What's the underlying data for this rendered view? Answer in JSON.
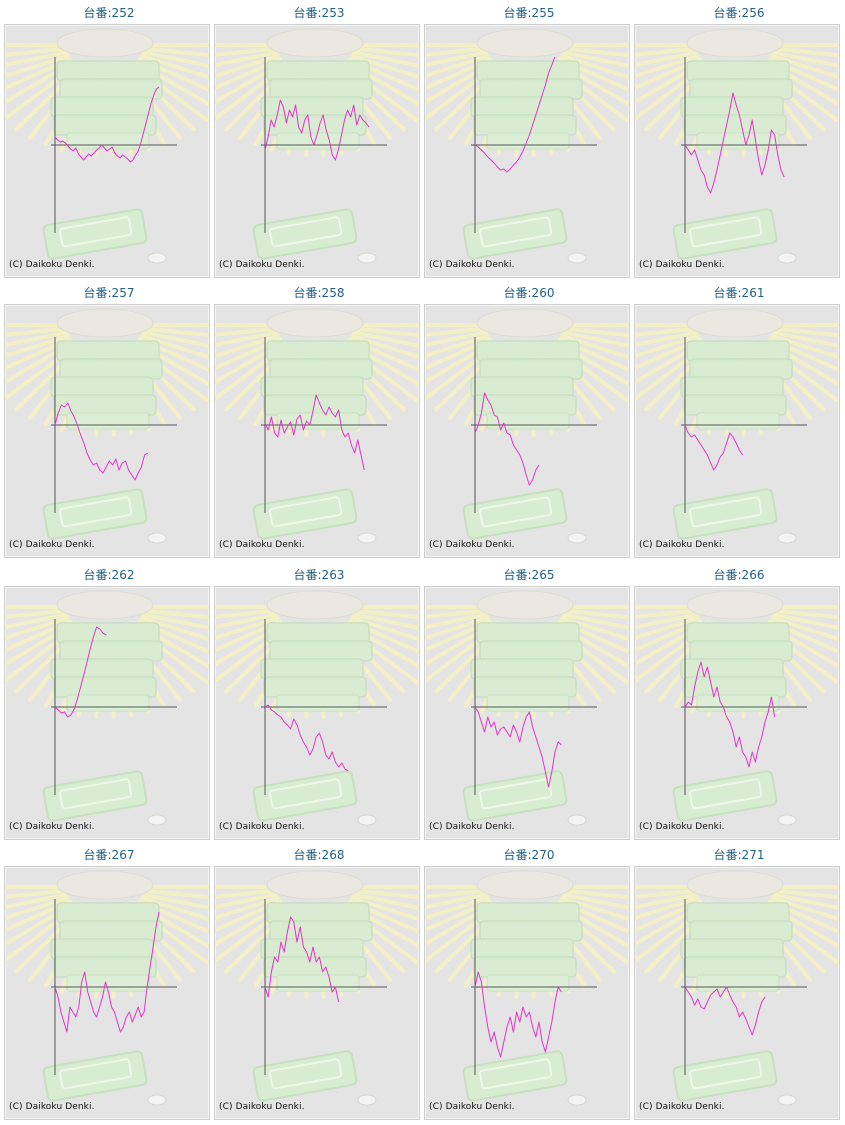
{
  "chart_data": [
    {
      "type": "line",
      "title": "台番:252",
      "y": [
        8,
        5,
        3,
        4,
        2,
        -1,
        -4,
        -6,
        -3,
        -9,
        -12,
        -15,
        -12,
        -9,
        -11,
        -8,
        -5,
        -3,
        0,
        -3,
        -6,
        -4,
        -2,
        -8,
        -11,
        -13,
        -10,
        -12,
        -14,
        -17,
        -15,
        -10,
        -6,
        2,
        12,
        22,
        32,
        42,
        50,
        56,
        58
      ]
    },
    {
      "type": "line",
      "title": "台番:253",
      "y": [
        -5,
        8,
        25,
        18,
        30,
        45,
        38,
        22,
        35,
        28,
        40,
        18,
        12,
        25,
        30,
        8,
        0,
        10,
        22,
        30,
        15,
        5,
        -10,
        -15,
        -5,
        10,
        25,
        35,
        28,
        40,
        20,
        30,
        25,
        22,
        18
      ]
    },
    {
      "type": "line",
      "title": "台番:255",
      "y": [
        0,
        -2,
        -5,
        -8,
        -12,
        -15,
        -18,
        -22,
        -25,
        -24,
        -27,
        -24,
        -20,
        -17,
        -12,
        -6,
        2,
        10,
        20,
        30,
        40,
        50,
        60,
        72,
        80,
        88
      ]
    },
    {
      "type": "line",
      "title": "台番:256",
      "y": [
        0,
        -5,
        -10,
        -5,
        -15,
        -25,
        -30,
        -42,
        -48,
        -38,
        -25,
        -10,
        5,
        20,
        35,
        52,
        40,
        30,
        15,
        0,
        10,
        25,
        5,
        -15,
        -30,
        -20,
        -5,
        15,
        10,
        -10,
        -25,
        -32
      ]
    },
    {
      "type": "line",
      "title": "台番:257",
      "y": [
        0,
        12,
        20,
        18,
        22,
        14,
        8,
        0,
        -10,
        -18,
        -28,
        -35,
        -40,
        -38,
        -45,
        -48,
        -42,
        -36,
        -40,
        -34,
        -45,
        -38,
        -36,
        -45,
        -50,
        -55,
        -48,
        -42,
        -30,
        -28
      ]
    },
    {
      "type": "line",
      "title": "台番:258",
      "y": [
        2,
        -5,
        8,
        -8,
        -12,
        5,
        -8,
        -2,
        3,
        -10,
        6,
        10,
        -5,
        4,
        0,
        14,
        30,
        22,
        15,
        10,
        18,
        12,
        8,
        15,
        -5,
        -12,
        -8,
        -20,
        -28,
        -15,
        -30,
        -45
      ]
    },
    {
      "type": "line",
      "title": "台番:260",
      "y": [
        -8,
        0,
        12,
        32,
        25,
        20,
        10,
        8,
        -5,
        2,
        -8,
        -10,
        -20,
        -25,
        -30,
        -38,
        -50,
        -60,
        -55,
        -45,
        -40
      ]
    },
    {
      "type": "line",
      "title": "台番:261",
      "y": [
        0,
        -8,
        -12,
        -10,
        -15,
        -20,
        -25,
        -30,
        -38,
        -45,
        -40,
        -32,
        -28,
        -18,
        -8,
        -12,
        -18,
        -25,
        -30
      ]
    },
    {
      "type": "line",
      "title": "台番:262",
      "y": [
        0,
        -3,
        -6,
        -5,
        -10,
        -8,
        -2,
        8,
        20,
        32,
        45,
        58,
        70,
        80,
        78,
        74,
        72
      ]
    },
    {
      "type": "line",
      "title": "台番:263",
      "y": [
        0,
        2,
        -3,
        -5,
        -8,
        -10,
        -15,
        -18,
        -22,
        -12,
        -18,
        -28,
        -35,
        -40,
        -48,
        -42,
        -30,
        -26,
        -35,
        -48,
        -52,
        -45,
        -55,
        -60,
        -56,
        -62,
        -64
      ]
    },
    {
      "type": "line",
      "title": "台番:265",
      "y": [
        0,
        -5,
        -15,
        -25,
        -10,
        -20,
        -15,
        -28,
        -22,
        -20,
        -25,
        -30,
        -18,
        -25,
        -35,
        -20,
        -10,
        -5,
        -20,
        -30,
        -40,
        -50,
        -65,
        -80,
        -65,
        -45,
        -35,
        -38
      ]
    },
    {
      "type": "line",
      "title": "台番:266",
      "y": [
        0,
        5,
        2,
        20,
        35,
        45,
        30,
        40,
        25,
        10,
        20,
        5,
        0,
        -10,
        -15,
        -25,
        -40,
        -30,
        -45,
        -50,
        -60,
        -45,
        -55,
        -40,
        -30,
        -15,
        -5,
        10,
        -10
      ]
    },
    {
      "type": "line",
      "title": "台番:267",
      "y": [
        0,
        -10,
        -25,
        -35,
        -45,
        -20,
        -25,
        -30,
        -20,
        5,
        15,
        -5,
        -15,
        -25,
        -30,
        -20,
        -10,
        5,
        -5,
        -20,
        -25,
        -35,
        -45,
        -40,
        -30,
        -25,
        -35,
        -28,
        -20,
        -30,
        -25,
        0,
        20,
        40,
        60,
        75
      ]
    },
    {
      "type": "line",
      "title": "台番:268",
      "y": [
        0,
        -10,
        15,
        30,
        25,
        45,
        35,
        55,
        70,
        65,
        45,
        60,
        40,
        35,
        25,
        40,
        25,
        30,
        15,
        20,
        10,
        -5,
        0,
        -15
      ]
    },
    {
      "type": "line",
      "title": "台番:270",
      "y": [
        0,
        15,
        5,
        -20,
        -40,
        -55,
        -45,
        -60,
        -70,
        -55,
        -40,
        -30,
        -45,
        -25,
        -35,
        -20,
        -30,
        -25,
        -40,
        -50,
        -35,
        -55,
        -65,
        -50,
        -35,
        -15,
        0,
        -5
      ]
    },
    {
      "type": "line",
      "title": "台番:271",
      "y": [
        0,
        -5,
        -10,
        -18,
        -12,
        -20,
        -22,
        -15,
        -8,
        -5,
        -2,
        -10,
        -5,
        0,
        -8,
        -15,
        -20,
        -30,
        -25,
        -32,
        -40,
        -48,
        -38,
        -25,
        -15,
        -10
      ]
    }
  ],
  "copyright": "(C) Daikoku Denki.",
  "colors": {
    "line": "#e633cc",
    "axis": "#555555",
    "title": "#1f5f8b",
    "panel_bg": "#e4e4e4"
  }
}
